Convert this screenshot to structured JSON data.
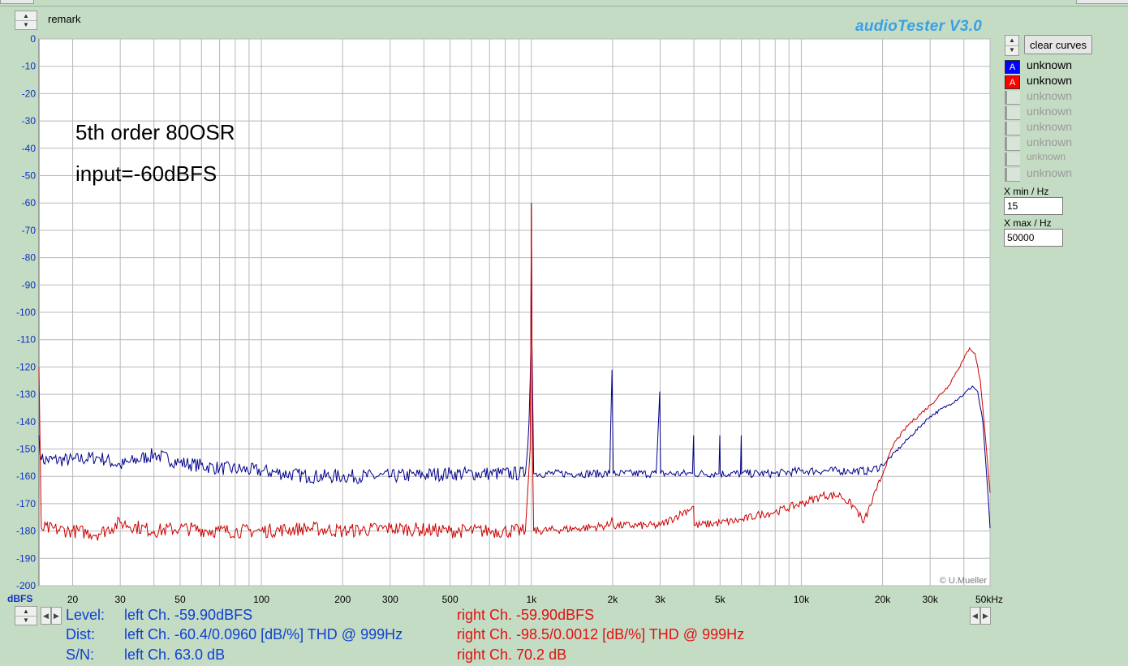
{
  "window": {
    "remark_label": "remark",
    "brand": "audioTester  V3.0",
    "copyright": "© U.Mueller"
  },
  "controls": {
    "clear_curves": "clear curves",
    "xmin_label": "X min / Hz",
    "xmin_value": "15",
    "xmax_label": "X max / Hz",
    "xmax_value": "50000"
  },
  "legend": [
    {
      "badge": "A",
      "label": "unknown",
      "color": "#0000ff",
      "active": true
    },
    {
      "badge": "A",
      "label": "unknown",
      "color": "#ff0000",
      "active": true
    },
    {
      "badge": "",
      "label": "unknown",
      "active": false
    },
    {
      "badge": "",
      "label": "unknown",
      "active": false
    },
    {
      "badge": "",
      "label": "unknown",
      "active": false
    },
    {
      "badge": "",
      "label": "unknown",
      "active": false
    },
    {
      "badge": "",
      "label": "unknown",
      "active": false
    },
    {
      "badge": "",
      "label": "unknown",
      "active": false
    }
  ],
  "stats": {
    "level_label": "Level:",
    "dist_label": "Dist:",
    "sn_label": "S/N:",
    "left_level": "left Ch. -59.90dBFS",
    "left_dist": "left Ch. -60.4/0.0960 [dB/%] THD @ 999Hz",
    "left_sn": "left Ch. 63.0 dB",
    "right_level": "right Ch. -59.90dBFS",
    "right_dist": "right Ch. -98.5/0.0012 [dB/%] THD @ 999Hz",
    "right_sn": "right Ch. 70.2 dB"
  },
  "chart_data": {
    "type": "line",
    "x_scale": "log",
    "xlim": [
      15,
      50000
    ],
    "ylim": [
      -200,
      0
    ],
    "ylabel": "dBFS",
    "xlabel": "",
    "grid": true,
    "annotations": [
      "5th order 80OSR",
      "input=-60dBFS"
    ],
    "x_ticks": [
      {
        "v": 20,
        "label": "20"
      },
      {
        "v": 30,
        "label": "30"
      },
      {
        "v": 50,
        "label": "50"
      },
      {
        "v": 100,
        "label": "100"
      },
      {
        "v": 200,
        "label": "200"
      },
      {
        "v": 300,
        "label": "300"
      },
      {
        "v": 500,
        "label": "500"
      },
      {
        "v": 1000,
        "label": "1k"
      },
      {
        "v": 2000,
        "label": "2k"
      },
      {
        "v": 3000,
        "label": "3k"
      },
      {
        "v": 5000,
        "label": "5k"
      },
      {
        "v": 10000,
        "label": "10k"
      },
      {
        "v": 20000,
        "label": "20k"
      },
      {
        "v": 30000,
        "label": "30k"
      },
      {
        "v": 50000,
        "label": "50kHz"
      }
    ],
    "y_ticks": [
      0,
      -10,
      -20,
      -30,
      -40,
      -50,
      -60,
      -70,
      -80,
      -90,
      -100,
      -110,
      -120,
      -130,
      -140,
      -150,
      -160,
      -170,
      -180,
      -190,
      -200
    ],
    "series": [
      {
        "color": "#00008b",
        "points": [
          [
            15,
            -145
          ],
          [
            15.3,
            -154
          ],
          [
            20,
            -154
          ],
          [
            25,
            -153
          ],
          [
            30,
            -156
          ],
          [
            40,
            -152
          ],
          [
            50,
            -155
          ],
          [
            70,
            -157
          ],
          [
            100,
            -158
          ],
          [
            150,
            -160
          ],
          [
            200,
            -160
          ],
          [
            300,
            -160
          ],
          [
            500,
            -159
          ],
          [
            700,
            -159
          ],
          [
            950,
            -159
          ],
          [
            980,
            -140
          ],
          [
            990,
            -125
          ],
          [
            995,
            -112
          ],
          [
            1000,
            -60
          ],
          [
            1005,
            -112
          ],
          [
            1010,
            -125
          ],
          [
            1020,
            -159
          ],
          [
            1500,
            -159
          ],
          [
            1950,
            -159
          ],
          [
            1990,
            -121
          ],
          [
            2010,
            -159
          ],
          [
            2900,
            -159
          ],
          [
            2990,
            -129
          ],
          [
            3010,
            -159
          ],
          [
            3950,
            -159
          ],
          [
            3990,
            -145
          ],
          [
            4010,
            -159
          ],
          [
            4950,
            -159
          ],
          [
            4990,
            -145
          ],
          [
            5010,
            -159
          ],
          [
            5950,
            -159
          ],
          [
            5990,
            -145
          ],
          [
            6010,
            -159
          ],
          [
            8000,
            -159
          ],
          [
            10000,
            -158
          ],
          [
            15000,
            -158
          ],
          [
            18000,
            -158
          ],
          [
            20000,
            -156
          ],
          [
            25000,
            -146
          ],
          [
            30000,
            -138
          ],
          [
            35000,
            -134
          ],
          [
            40000,
            -130
          ],
          [
            43000,
            -127
          ],
          [
            45000,
            -129
          ],
          [
            47000,
            -140
          ],
          [
            49000,
            -165
          ],
          [
            50000,
            -179
          ]
        ]
      },
      {
        "color": "#cc0000",
        "points": [
          [
            15,
            -120
          ],
          [
            15.3,
            -179
          ],
          [
            20,
            -180
          ],
          [
            25,
            -181
          ],
          [
            30,
            -177
          ],
          [
            40,
            -180
          ],
          [
            50,
            -179
          ],
          [
            70,
            -180
          ],
          [
            100,
            -180
          ],
          [
            150,
            -179
          ],
          [
            200,
            -180
          ],
          [
            300,
            -179
          ],
          [
            500,
            -180
          ],
          [
            700,
            -180
          ],
          [
            950,
            -180
          ],
          [
            990,
            -150
          ],
          [
            995,
            -110
          ],
          [
            1000,
            -61
          ],
          [
            1005,
            -110
          ],
          [
            1010,
            -150
          ],
          [
            1020,
            -180
          ],
          [
            1500,
            -179
          ],
          [
            1950,
            -178
          ],
          [
            1990,
            -175
          ],
          [
            2010,
            -178
          ],
          [
            3000,
            -178
          ],
          [
            3990,
            -171
          ],
          [
            4010,
            -178
          ],
          [
            5000,
            -177
          ],
          [
            6000,
            -176
          ],
          [
            7000,
            -174
          ],
          [
            8000,
            -173
          ],
          [
            10000,
            -170
          ],
          [
            12000,
            -167
          ],
          [
            14000,
            -167
          ],
          [
            16000,
            -172
          ],
          [
            17000,
            -177
          ],
          [
            19000,
            -165
          ],
          [
            22000,
            -148
          ],
          [
            25000,
            -141
          ],
          [
            30000,
            -134
          ],
          [
            35000,
            -127
          ],
          [
            40000,
            -117
          ],
          [
            42000,
            -113
          ],
          [
            44000,
            -115
          ],
          [
            46000,
            -125
          ],
          [
            48000,
            -145
          ],
          [
            50000,
            -166
          ]
        ]
      }
    ]
  }
}
